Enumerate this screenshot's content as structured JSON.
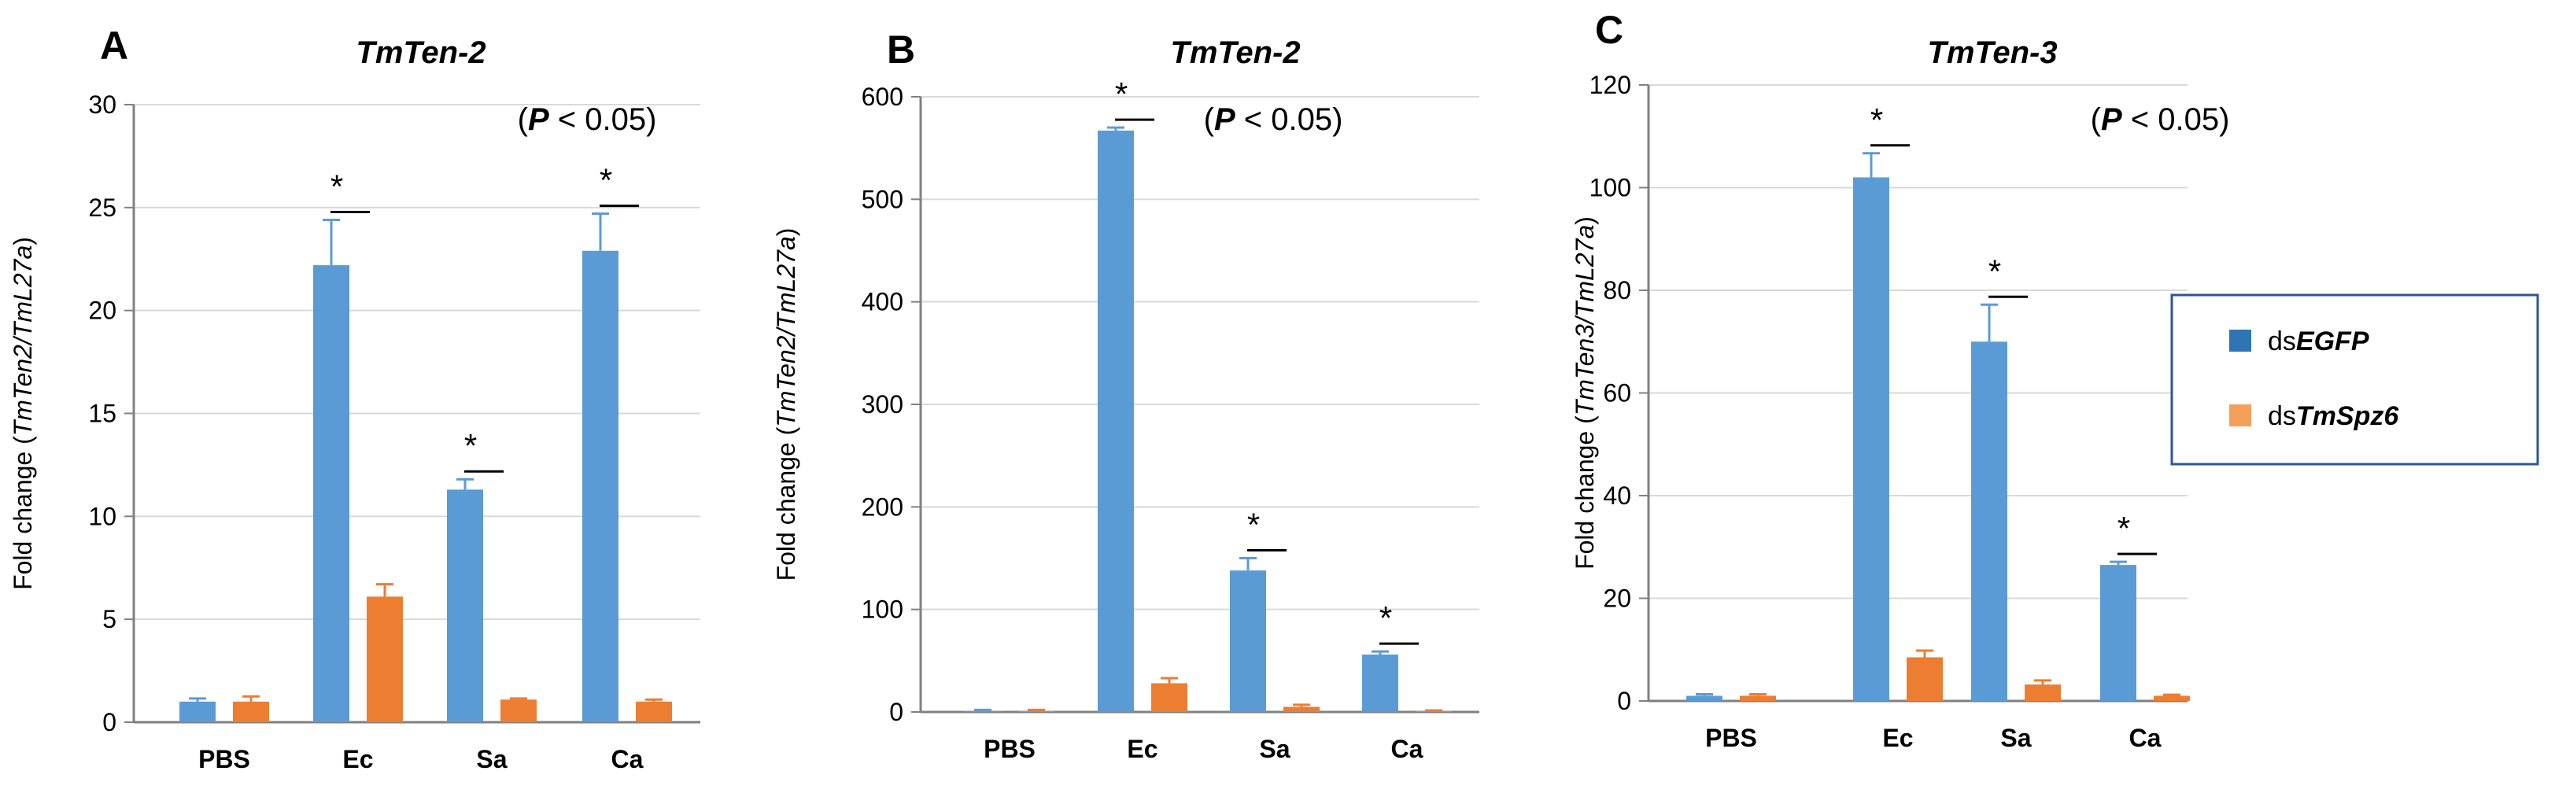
{
  "colors": {
    "series_a": "#5b9bd5",
    "series_b": "#ed7d31",
    "axis": "#808080",
    "grid": "#d9d9d9",
    "legend_border": "#2f5597"
  },
  "legend": {
    "items": [
      {
        "prefix": "ds",
        "name": "EGFP",
        "color": "#2e75b6"
      },
      {
        "prefix": "ds",
        "name": "TmSpz6",
        "color": "#f4a05a"
      }
    ]
  },
  "chart_data": [
    {
      "type": "bar",
      "panel": "A",
      "title": "TmTen-2",
      "annotation_open": "(",
      "annotation_p": "P",
      "annotation_rest": "< 0.05)",
      "ylabel_prefix": "Fold change (",
      "ylabel_italic": "TmTen2/TmL27a",
      "ylabel_suffix": ")",
      "categories": [
        "PBS",
        "Ec",
        "Sa",
        "Ca"
      ],
      "ylim": [
        0,
        30
      ],
      "yticks": [
        "0",
        "5",
        "10",
        "15",
        "20",
        "25",
        "30"
      ],
      "grid": true,
      "series": [
        {
          "name": "dsEGFP",
          "values": [
            1.0,
            22.2,
            11.3,
            22.9
          ],
          "errors": [
            0.15,
            2.2,
            0.5,
            1.8
          ]
        },
        {
          "name": "dsTmSpz6",
          "values": [
            1.0,
            6.1,
            1.1,
            1.0
          ],
          "errors": [
            0.25,
            0.6,
            0.05,
            0.1
          ]
        }
      ],
      "significance": [
        {
          "category": "Ec",
          "label": "*"
        },
        {
          "category": "Sa",
          "label": "*"
        },
        {
          "category": "Ca",
          "label": "*"
        }
      ]
    },
    {
      "type": "bar",
      "panel": "B",
      "title": "TmTen-2",
      "annotation_open": "(",
      "annotation_p": "P",
      "annotation_rest": "< 0.05)",
      "ylabel_prefix": "Fold change (",
      "ylabel_italic": "TmTen2/TmL27a",
      "ylabel_suffix": ")",
      "categories": [
        "PBS",
        "Ec",
        "Sa",
        "Ca"
      ],
      "ylim": [
        0,
        600
      ],
      "yticks": [
        "0",
        "100",
        "200",
        "300",
        "400",
        "500",
        "600"
      ],
      "grid": true,
      "series": [
        {
          "name": "dsEGFP",
          "values": [
            1,
            567,
            138,
            56
          ],
          "errors": [
            1,
            3,
            12,
            3
          ]
        },
        {
          "name": "dsTmSpz6",
          "values": [
            1,
            28,
            5,
            1
          ],
          "errors": [
            1,
            5,
            2,
            0.5
          ]
        }
      ],
      "significance": [
        {
          "category": "Ec",
          "label": "*"
        },
        {
          "category": "Sa",
          "label": "*"
        },
        {
          "category": "Ca",
          "label": "*"
        }
      ]
    },
    {
      "type": "bar",
      "panel": "C",
      "title": "TmTen-3",
      "annotation_open": "(",
      "annotation_p": "P",
      "annotation_rest": "< 0.05)",
      "ylabel_prefix": "Fold change (",
      "ylabel_italic": "TmTen3/TmL27a",
      "ylabel_suffix": ")",
      "categories": [
        "PBS",
        "Ec",
        "Sa",
        "Ca"
      ],
      "ylim": [
        0,
        120
      ],
      "yticks": [
        "0",
        "20",
        "40",
        "60",
        "80",
        "100",
        "120"
      ],
      "grid": true,
      "series": [
        {
          "name": "dsEGFP",
          "values": [
            1,
            102,
            70,
            26.5
          ],
          "errors": [
            0.3,
            4.7,
            7.2,
            0.6
          ]
        },
        {
          "name": "dsTmSpz6",
          "values": [
            1,
            8.5,
            3.2,
            1
          ],
          "errors": [
            0.3,
            1.3,
            0.8,
            0.2
          ]
        }
      ],
      "significance": [
        {
          "category": "Ec",
          "label": "*"
        },
        {
          "category": "Sa",
          "label": "*"
        },
        {
          "category": "Ca",
          "label": "*"
        }
      ]
    }
  ]
}
